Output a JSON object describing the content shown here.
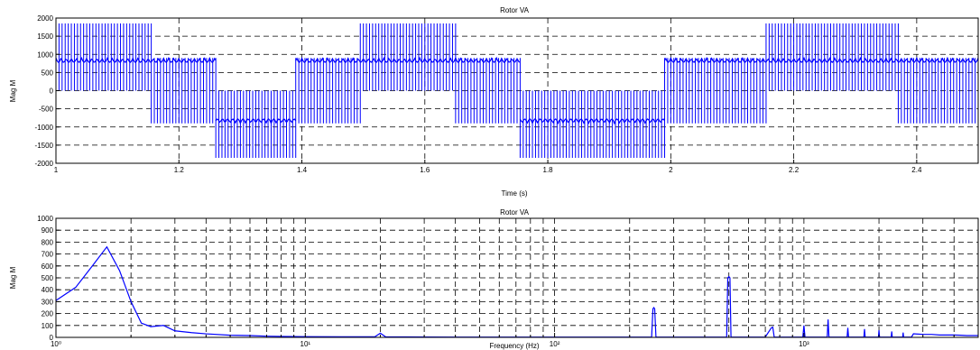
{
  "chart_data": [
    {
      "type": "line",
      "title": "Rotor VA",
      "xlabel": "Time (s)",
      "ylabel": "Mag M",
      "xlim": [
        1.0,
        2.5
      ],
      "ylim": [
        -2000,
        2000
      ],
      "x_ticks": [
        1,
        1.2,
        1.4,
        1.6,
        1.8,
        2,
        2.2,
        2.4
      ],
      "x_tick_labels": [
        "1",
        "1.2",
        "1.4",
        "1.6",
        "1.8",
        "2",
        "2.2",
        "2.4"
      ],
      "y_ticks": [
        -2000,
        -1500,
        -1000,
        -500,
        0,
        500,
        1000,
        1500,
        2000
      ],
      "y_tick_labels": [
        "-2000",
        "-1500",
        "-1000",
        "-500",
        "0",
        "500",
        "1000",
        "1500",
        "2000"
      ],
      "grid": true,
      "color": "#0000ff",
      "pwm_periods": 0.005,
      "series": [
        {
          "segments": [
            {
              "t0": 1.0,
              "t1": 1.155,
              "low": 0,
              "high": 1850,
              "env_low": 0,
              "env_high": 900
            },
            {
              "t0": 1.155,
              "t1": 1.26,
              "low": -900,
              "high": 900,
              "env_low": -900,
              "env_high": 900
            },
            {
              "t0": 1.26,
              "t1": 1.39,
              "low": -1850,
              "high": 0,
              "env_low": -900,
              "env_high": 0
            },
            {
              "t0": 1.39,
              "t1": 1.495,
              "low": -900,
              "high": 900,
              "env_low": -900,
              "env_high": 900
            },
            {
              "t0": 1.495,
              "t1": 1.65,
              "low": 0,
              "high": 1850,
              "env_low": 0,
              "env_high": 900
            },
            {
              "t0": 1.65,
              "t1": 1.755,
              "low": -900,
              "high": 900,
              "env_low": -900,
              "env_high": 900
            },
            {
              "t0": 1.755,
              "t1": 1.99,
              "low": -1850,
              "high": 0,
              "env_low": -900,
              "env_high": 0
            },
            {
              "t0": 1.99,
              "t1": 2.155,
              "low": -900,
              "high": 900,
              "env_low": -900,
              "env_high": 900
            },
            {
              "t0": 2.155,
              "t1": 2.37,
              "low": 0,
              "high": 1850,
              "env_low": 0,
              "env_high": 900
            },
            {
              "t0": 2.37,
              "t1": 2.5,
              "low": -900,
              "high": 900,
              "env_low": -900,
              "env_high": 900
            }
          ]
        }
      ]
    },
    {
      "type": "line",
      "title": "Rotor VA",
      "xlabel": "Frequency (Hz)",
      "ylabel": "Mag M",
      "xscale": "log",
      "xlim": [
        1,
        5000
      ],
      "ylim": [
        0,
        1000
      ],
      "x_ticks": [
        1,
        10,
        100,
        1000
      ],
      "x_tick_labels": [
        "10⁰",
        "10¹",
        "10²",
        "10³"
      ],
      "y_ticks": [
        0,
        100,
        200,
        300,
        400,
        500,
        600,
        700,
        800,
        900,
        1000
      ],
      "y_tick_labels": [
        "0",
        "100",
        "200",
        "300",
        "400",
        "500",
        "600",
        "700",
        "800",
        "900",
        "1000"
      ],
      "grid": true,
      "color": "#0000ff",
      "series": [
        {
          "x": [
            1,
            1.2,
            1.4,
            1.6,
            1.8,
            2.0,
            2.2,
            2.4,
            2.7,
            3.0,
            3.5,
            4,
            5,
            6,
            7,
            8,
            10,
            14,
            19,
            20,
            21,
            30,
            50,
            80,
            100,
            150,
            200,
            245,
            248,
            250,
            252,
            255,
            300,
            400,
            490,
            495,
            500,
            505,
            510,
            600,
            700,
            740,
            750,
            760,
            900,
            990,
            1000,
            1010,
            1200,
            1240,
            1250,
            1260,
            1450,
            1490,
            1500,
            1510,
            1700,
            1740,
            1750,
            1760,
            1950,
            1990,
            2000,
            2010,
            2200,
            2240,
            2250,
            2260,
            2450,
            2490,
            2500,
            2510,
            2700,
            2750,
            3000,
            3250,
            3500,
            3750,
            4000,
            4250,
            4500,
            4750,
            5000
          ],
          "y": [
            310,
            420,
            600,
            760,
            560,
            300,
            120,
            90,
            100,
            55,
            40,
            30,
            18,
            15,
            10,
            8,
            6,
            5,
            5,
            35,
            5,
            3,
            2,
            2,
            2,
            2,
            2,
            3,
            240,
            250,
            240,
            3,
            2,
            2,
            3,
            500,
            510,
            500,
            3,
            2,
            3,
            80,
            85,
            3,
            2,
            3,
            100,
            3,
            2,
            3,
            150,
            3,
            2,
            3,
            80,
            3,
            2,
            3,
            70,
            3,
            2,
            3,
            60,
            3,
            2,
            3,
            50,
            3,
            2,
            3,
            40,
            3,
            2,
            30,
            25,
            25,
            20,
            20,
            20,
            18,
            15,
            15,
            15
          ]
        }
      ]
    }
  ]
}
